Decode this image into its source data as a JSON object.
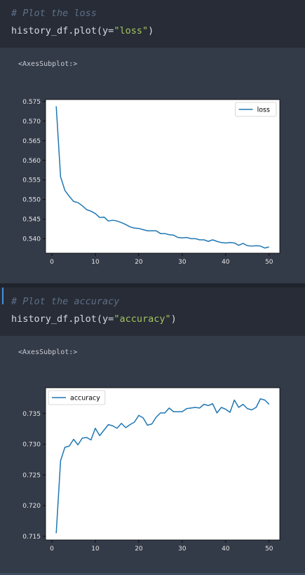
{
  "cells": [
    {
      "comment": "# Plot the loss",
      "code_prefix": "history_df.plot(y=",
      "code_string": "\"loss\"",
      "code_suffix": ")",
      "output_text": "<AxesSubplot:>"
    },
    {
      "comment": "# Plot the accuracy",
      "code_prefix": "history_df.plot(y=",
      "code_string": "\"accuracy\"",
      "code_suffix": ")",
      "output_text": "<AxesSubplot:>"
    }
  ],
  "chart_data": [
    {
      "type": "line",
      "title": "",
      "xlabel": "",
      "ylabel": "",
      "xlim": [
        -1.45,
        52.45
      ],
      "ylim": [
        0.5363,
        0.5755
      ],
      "xticks": [
        0,
        10,
        20,
        30,
        40,
        50
      ],
      "xtick_labels": [
        "0",
        "10",
        "20",
        "30",
        "40",
        "50"
      ],
      "yticks": [
        0.54,
        0.545,
        0.55,
        0.555,
        0.56,
        0.565,
        0.57,
        0.575
      ],
      "ytick_labels": [
        "0.540",
        "0.545",
        "0.550",
        "0.555",
        "0.560",
        "0.565",
        "0.570",
        "0.575"
      ],
      "legend_position": "upper right",
      "color": "#1f77b4",
      "series": [
        {
          "name": "loss",
          "x": [
            1,
            2,
            3,
            4,
            5,
            6,
            7,
            8,
            9,
            10,
            11,
            12,
            13,
            14,
            15,
            16,
            17,
            18,
            19,
            20,
            21,
            22,
            23,
            24,
            25,
            26,
            27,
            28,
            29,
            30,
            31,
            32,
            33,
            34,
            35,
            36,
            37,
            38,
            39,
            40,
            41,
            42,
            43,
            44,
            45,
            46,
            47,
            48,
            49,
            50
          ],
          "values": [
            0.5738,
            0.5558,
            0.5523,
            0.5508,
            0.5495,
            0.5492,
            0.5484,
            0.5474,
            0.547,
            0.5464,
            0.5454,
            0.5455,
            0.5445,
            0.5447,
            0.5445,
            0.5441,
            0.5436,
            0.543,
            0.5427,
            0.5426,
            0.5423,
            0.542,
            0.542,
            0.542,
            0.5413,
            0.5413,
            0.541,
            0.5409,
            0.5403,
            0.5402,
            0.5403,
            0.54,
            0.54,
            0.5397,
            0.5397,
            0.5393,
            0.5397,
            0.5393,
            0.539,
            0.5389,
            0.539,
            0.5389,
            0.5383,
            0.5388,
            0.5382,
            0.5381,
            0.5382,
            0.5381,
            0.5376,
            0.5379
          ]
        }
      ]
    },
    {
      "type": "line",
      "title": "",
      "xlabel": "",
      "ylabel": "",
      "xlim": [
        -1.45,
        52.45
      ],
      "ylim": [
        0.7144,
        0.7392
      ],
      "xticks": [
        0,
        10,
        20,
        30,
        40,
        50
      ],
      "xtick_labels": [
        "0",
        "10",
        "20",
        "30",
        "40",
        "50"
      ],
      "yticks": [
        0.715,
        0.72,
        0.725,
        0.73,
        0.735
      ],
      "ytick_labels": [
        "0.715",
        "0.720",
        "0.725",
        "0.730",
        "0.735"
      ],
      "legend_position": "upper left",
      "color": "#1f77b4",
      "series": [
        {
          "name": "accuracy",
          "x": [
            1,
            2,
            3,
            4,
            5,
            6,
            7,
            8,
            9,
            10,
            11,
            12,
            13,
            14,
            15,
            16,
            17,
            18,
            19,
            20,
            21,
            22,
            23,
            24,
            25,
            26,
            27,
            28,
            29,
            30,
            31,
            32,
            33,
            34,
            35,
            36,
            37,
            38,
            39,
            40,
            41,
            42,
            43,
            44,
            45,
            46,
            47,
            48,
            49,
            50
          ],
          "values": [
            0.7155,
            0.7273,
            0.7295,
            0.7297,
            0.7308,
            0.7299,
            0.731,
            0.7311,
            0.7307,
            0.7326,
            0.7314,
            0.7323,
            0.7332,
            0.733,
            0.7326,
            0.7334,
            0.7327,
            0.7332,
            0.7336,
            0.7347,
            0.7343,
            0.7331,
            0.7333,
            0.7344,
            0.7351,
            0.7351,
            0.7359,
            0.7353,
            0.7353,
            0.7353,
            0.7358,
            0.7359,
            0.736,
            0.7359,
            0.7365,
            0.7363,
            0.7366,
            0.7351,
            0.736,
            0.7357,
            0.7352,
            0.7372,
            0.736,
            0.7365,
            0.7358,
            0.7356,
            0.736,
            0.7374,
            0.7372,
            0.7365
          ]
        }
      ]
    }
  ]
}
